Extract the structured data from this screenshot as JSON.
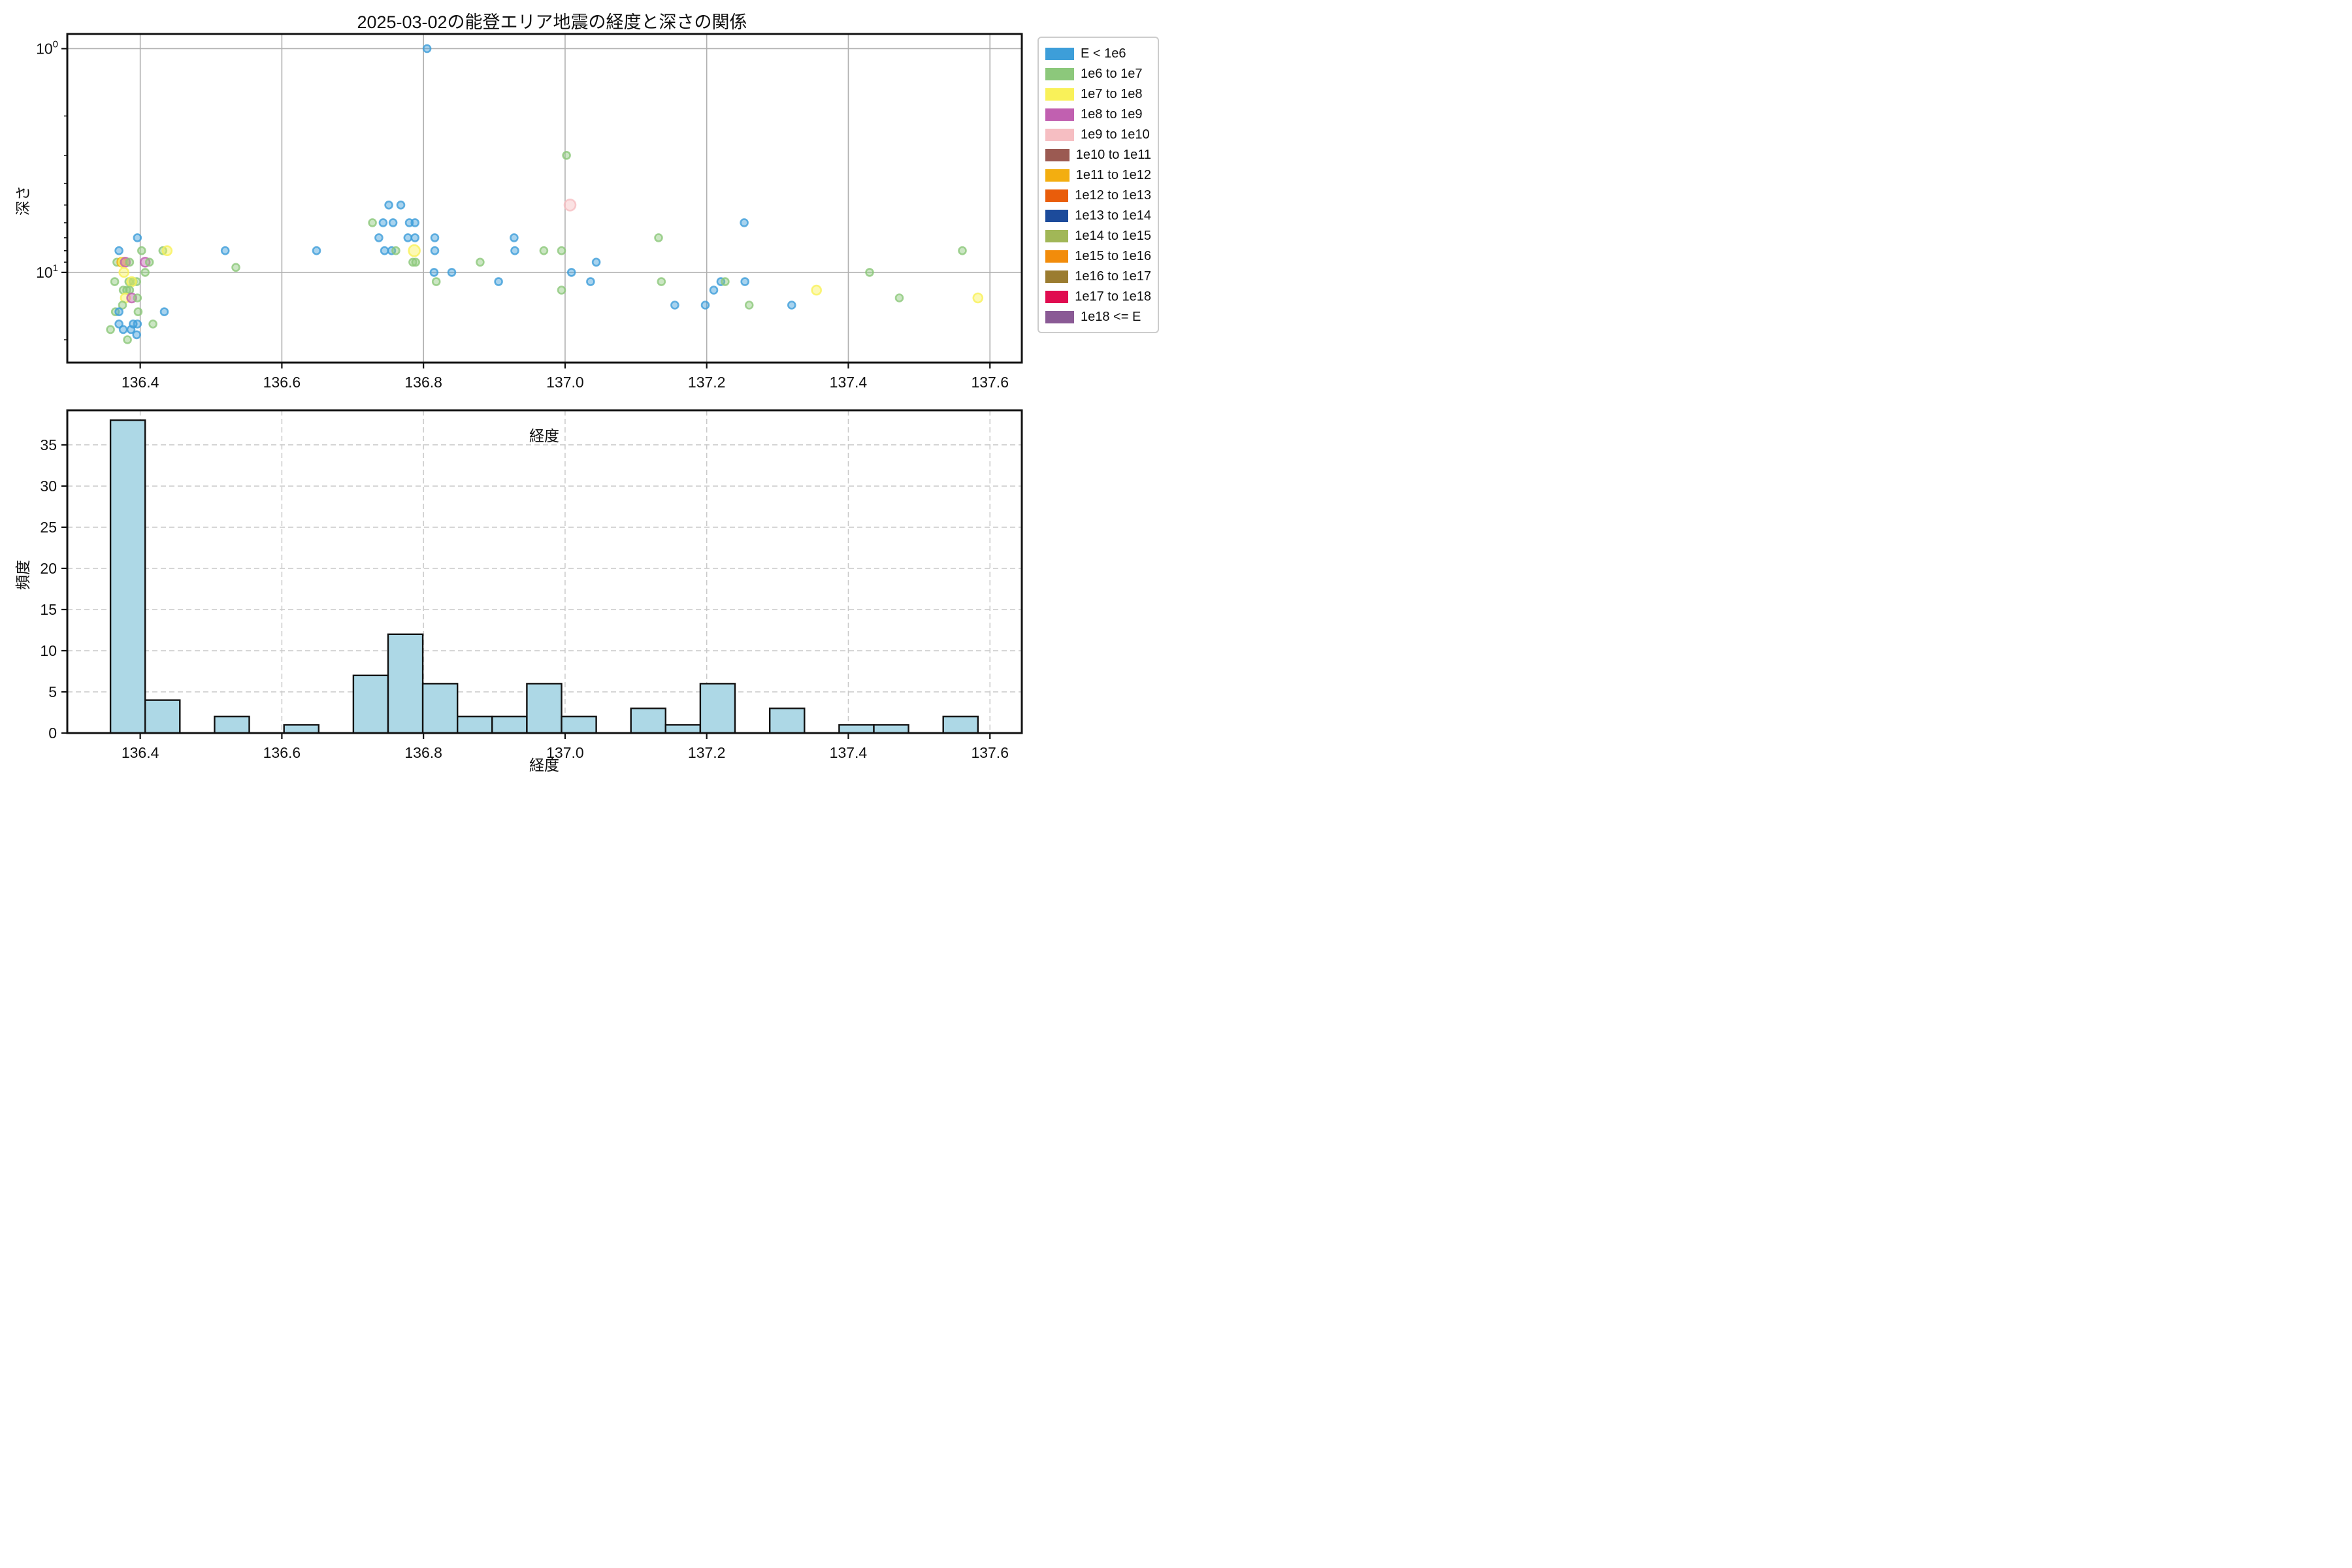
{
  "title": "2025-03-02の能登エリア地震の経度と深さの関係",
  "legend": {
    "items": [
      {
        "label": "E < 1e6",
        "color": "#3d9ed9"
      },
      {
        "label": "1e6 to 1e7",
        "color": "#8cc87b"
      },
      {
        "label": "1e7 to 1e8",
        "color": "#f9f159"
      },
      {
        "label": "1e8 to 1e9",
        "color": "#c160b0"
      },
      {
        "label": "1e9 to 1e10",
        "color": "#f6bec2"
      },
      {
        "label": "1e10 to 1e11",
        "color": "#9b5a52"
      },
      {
        "label": "1e11 to 1e12",
        "color": "#f3ae10"
      },
      {
        "label": "1e12 to 1e13",
        "color": "#e95d0b"
      },
      {
        "label": "1e13 to 1e14",
        "color": "#1c4b9b"
      },
      {
        "label": "1e14 to 1e15",
        "color": "#a1b757"
      },
      {
        "label": "1e15 to 1e16",
        "color": "#f28c0b"
      },
      {
        "label": "1e16 to 1e17",
        "color": "#9b7c30"
      },
      {
        "label": "1e17 to 1e18",
        "color": "#e00c50"
      },
      {
        "label": "1e18 <= E",
        "color": "#8a5a95"
      }
    ]
  },
  "chart_data": [
    {
      "type": "scatter",
      "title": "2025-03-02の能登エリア地震の経度と深さの関係",
      "xlabel": "経度",
      "ylabel": "深さ",
      "xlim": [
        136.297,
        137.645
      ],
      "ylim": [
        0.86,
        25.3
      ],
      "yscale": "log-inverted",
      "grid": "solid",
      "legend_position": "outside-right",
      "xticks": [
        {
          "v": 136.4,
          "label": "136.4"
        },
        {
          "v": 136.6,
          "label": "136.6"
        },
        {
          "v": 136.8,
          "label": "136.8"
        },
        {
          "v": 137.0,
          "label": "137.0"
        },
        {
          "v": 137.2,
          "label": "137.2"
        },
        {
          "v": 137.4,
          "label": "137.4"
        },
        {
          "v": 137.6,
          "label": "137.6"
        }
      ],
      "yticks": [
        {
          "v": 1,
          "base": "10",
          "exp": "0"
        },
        {
          "v": 10,
          "base": "10",
          "exp": "1"
        }
      ],
      "yminorticks": [
        2,
        3,
        4,
        5,
        6,
        7,
        8,
        9,
        20
      ],
      "series_colors": {
        "blue": "#3d9ed9",
        "green": "#8cc87b",
        "yellow": "#f9f159",
        "magenta": "#c160b0",
        "pink": "#f6bec2",
        "gold": "#f3ae10"
      },
      "point_fields": [
        "longitude",
        "depth_km",
        "energy_bin_color",
        "size_class"
      ],
      "points": [
        [
          136.396,
          7,
          "blue",
          1
        ],
        [
          136.37,
          8,
          "blue",
          1
        ],
        [
          136.402,
          8,
          "green",
          1
        ],
        [
          136.432,
          8,
          "green",
          1
        ],
        [
          136.438,
          8,
          "yellow",
          2
        ],
        [
          136.367,
          9,
          "green",
          1
        ],
        [
          136.374,
          9,
          "gold",
          2
        ],
        [
          136.376,
          9,
          "yellow",
          2
        ],
        [
          136.379,
          9,
          "magenta",
          2
        ],
        [
          136.385,
          9,
          "green",
          1
        ],
        [
          136.407,
          9,
          "magenta",
          2
        ],
        [
          136.413,
          9,
          "green",
          1
        ],
        [
          136.377,
          10,
          "yellow",
          2
        ],
        [
          136.407,
          10,
          "green",
          1
        ],
        [
          136.364,
          11,
          "green",
          1
        ],
        [
          136.384,
          11,
          "green",
          1
        ],
        [
          136.39,
          11,
          "green",
          1
        ],
        [
          136.395,
          11,
          "green",
          1
        ],
        [
          136.388,
          11,
          "yellow",
          2
        ],
        [
          136.376,
          12,
          "green",
          1
        ],
        [
          136.381,
          12,
          "green",
          1
        ],
        [
          136.385,
          12,
          "green",
          1
        ],
        [
          136.379,
          13,
          "yellow",
          2
        ],
        [
          136.388,
          13,
          "magenta",
          2
        ],
        [
          136.396,
          13,
          "green",
          1
        ],
        [
          136.375,
          14,
          "green",
          1
        ],
        [
          136.365,
          15,
          "green",
          1
        ],
        [
          136.37,
          15,
          "blue",
          1
        ],
        [
          136.397,
          15,
          "green",
          1
        ],
        [
          136.434,
          15,
          "blue",
          1
        ],
        [
          136.37,
          17,
          "blue",
          1
        ],
        [
          136.39,
          17,
          "blue",
          1
        ],
        [
          136.396,
          17,
          "blue",
          1
        ],
        [
          136.418,
          17,
          "green",
          1
        ],
        [
          136.358,
          18,
          "green",
          1
        ],
        [
          136.376,
          18,
          "blue",
          1
        ],
        [
          136.387,
          18,
          "blue",
          1
        ],
        [
          136.395,
          19,
          "blue",
          1
        ],
        [
          136.382,
          20,
          "green",
          1
        ],
        [
          136.52,
          8,
          "blue",
          1
        ],
        [
          136.535,
          9.5,
          "green",
          1
        ],
        [
          136.649,
          8,
          "blue",
          1
        ],
        [
          136.805,
          1,
          "blue",
          1
        ],
        [
          136.751,
          5,
          "blue",
          1
        ],
        [
          136.768,
          5,
          "blue",
          1
        ],
        [
          136.728,
          6,
          "green",
          1
        ],
        [
          136.743,
          6,
          "blue",
          1
        ],
        [
          136.757,
          6,
          "blue",
          1
        ],
        [
          136.78,
          6,
          "blue",
          1
        ],
        [
          136.788,
          6,
          "blue",
          1
        ],
        [
          136.737,
          7,
          "blue",
          1
        ],
        [
          136.778,
          7,
          "blue",
          1
        ],
        [
          136.788,
          7,
          "blue",
          1
        ],
        [
          136.816,
          7,
          "blue",
          1
        ],
        [
          136.928,
          7,
          "blue",
          1
        ],
        [
          136.745,
          8,
          "blue",
          1
        ],
        [
          136.755,
          8,
          "blue",
          1
        ],
        [
          136.761,
          8,
          "green",
          1
        ],
        [
          136.787,
          8,
          "yellow",
          3
        ],
        [
          136.816,
          8,
          "blue",
          1
        ],
        [
          136.929,
          8,
          "blue",
          1
        ],
        [
          136.785,
          9,
          "green",
          1
        ],
        [
          136.789,
          9,
          "green",
          1
        ],
        [
          136.88,
          9,
          "green",
          1
        ],
        [
          136.815,
          10,
          "blue",
          1
        ],
        [
          136.84,
          10,
          "blue",
          1
        ],
        [
          136.818,
          11,
          "green",
          1
        ],
        [
          136.906,
          11,
          "blue",
          1
        ],
        [
          136.97,
          8,
          "green",
          1
        ],
        [
          136.995,
          8,
          "green",
          1
        ],
        [
          137.002,
          3,
          "green",
          1
        ],
        [
          137.007,
          5,
          "pink",
          3
        ],
        [
          137.044,
          9,
          "blue",
          1
        ],
        [
          137.009,
          10,
          "blue",
          1
        ],
        [
          137.036,
          11,
          "blue",
          1
        ],
        [
          136.995,
          12,
          "green",
          1
        ],
        [
          137.132,
          7,
          "green",
          1
        ],
        [
          137.136,
          11,
          "green",
          1
        ],
        [
          137.155,
          14,
          "blue",
          1
        ],
        [
          137.253,
          6,
          "blue",
          1
        ],
        [
          137.22,
          11,
          "blue",
          1
        ],
        [
          137.226,
          11,
          "green",
          1
        ],
        [
          137.254,
          11,
          "blue",
          1
        ],
        [
          137.21,
          12,
          "blue",
          1
        ],
        [
          137.355,
          12,
          "yellow",
          2
        ],
        [
          137.198,
          14,
          "blue",
          1
        ],
        [
          137.26,
          14,
          "green",
          1
        ],
        [
          137.32,
          14,
          "blue",
          1
        ],
        [
          137.561,
          8,
          "green",
          1
        ],
        [
          137.43,
          10,
          "green",
          1
        ],
        [
          137.472,
          13,
          "green",
          1
        ],
        [
          137.583,
          13,
          "yellow",
          2
        ]
      ]
    },
    {
      "type": "bar",
      "xlabel": "経度",
      "ylabel": "頻度",
      "xlim": [
        136.297,
        137.645
      ],
      "ylim": [
        0,
        39.2
      ],
      "grid": "dashed",
      "bin_start": 136.358,
      "bin_width": 0.049,
      "values": [
        38,
        4,
        0,
        2,
        0,
        1,
        0,
        7,
        12,
        6,
        2,
        2,
        6,
        2,
        0,
        3,
        1,
        6,
        0,
        3,
        0,
        1,
        1,
        0,
        2
      ],
      "bar_color": "#add8e6",
      "bar_edge": "#111111",
      "xticks": [
        {
          "v": 136.4,
          "label": "136.4"
        },
        {
          "v": 136.6,
          "label": "136.6"
        },
        {
          "v": 136.8,
          "label": "136.8"
        },
        {
          "v": 137.0,
          "label": "137.0"
        },
        {
          "v": 137.2,
          "label": "137.2"
        },
        {
          "v": 137.4,
          "label": "137.4"
        },
        {
          "v": 137.6,
          "label": "137.6"
        }
      ],
      "yticks": [
        0,
        5,
        10,
        15,
        20,
        25,
        30,
        35
      ]
    }
  ]
}
